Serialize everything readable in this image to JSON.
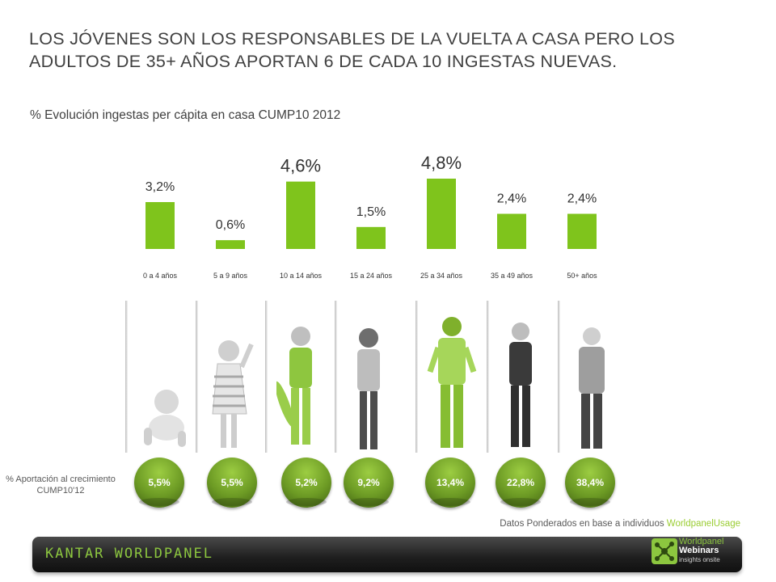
{
  "title": "LOS JÓVENES SON LOS RESPONSABLES DE LA VUELTA A CASA PERO LOS ADULTOS DE 35+ AÑOS APORTAN 6 DE CADA 10 INGESTAS NUEVAS.",
  "subtitle": "% Evolución ingestas per cápita en casa CUMP10 2012",
  "chart_data": {
    "type": "bar",
    "title": "",
    "categories": [
      "0 a 4 años",
      "5 a 9 años",
      "10 a 14 años",
      "15 a 24 años",
      "25 a 34 años",
      "35 a 49 años",
      "50+ años"
    ],
    "values": [
      3.2,
      0.6,
      4.6,
      1.5,
      4.8,
      2.4,
      2.4
    ],
    "value_labels": [
      "3,2%",
      "0,6%",
      "4,6%",
      "1,5%",
      "4,8%",
      "2,4%",
      "2,4%"
    ],
    "unit": "%",
    "ylim": [
      0,
      4.8
    ],
    "grid": false,
    "legend": "none",
    "bar_color": "#7fc41c"
  },
  "contribution": {
    "label": "% Aportación al crecimiento CUMP10'12",
    "values": [
      "5,5%",
      "5,5%",
      "5,2%",
      "9,2%",
      "13,4%",
      "22,8%",
      "38,4%"
    ],
    "color": "#76a82a"
  },
  "people": [
    "baby-figure",
    "girl-figure",
    "boy-figure",
    "young-woman-figure",
    "man-figure",
    "woman-figure",
    "older-woman-figure"
  ],
  "note": {
    "text": "Datos Ponderados en base a  individuos ",
    "brand": "WorldpanelUsage"
  },
  "footer": {
    "brand": "KANTAR WORLDPANEL",
    "webinar_line1": "Worldpanel",
    "webinar_line2": "Webinars",
    "webinar_line3": "insights onsite"
  }
}
